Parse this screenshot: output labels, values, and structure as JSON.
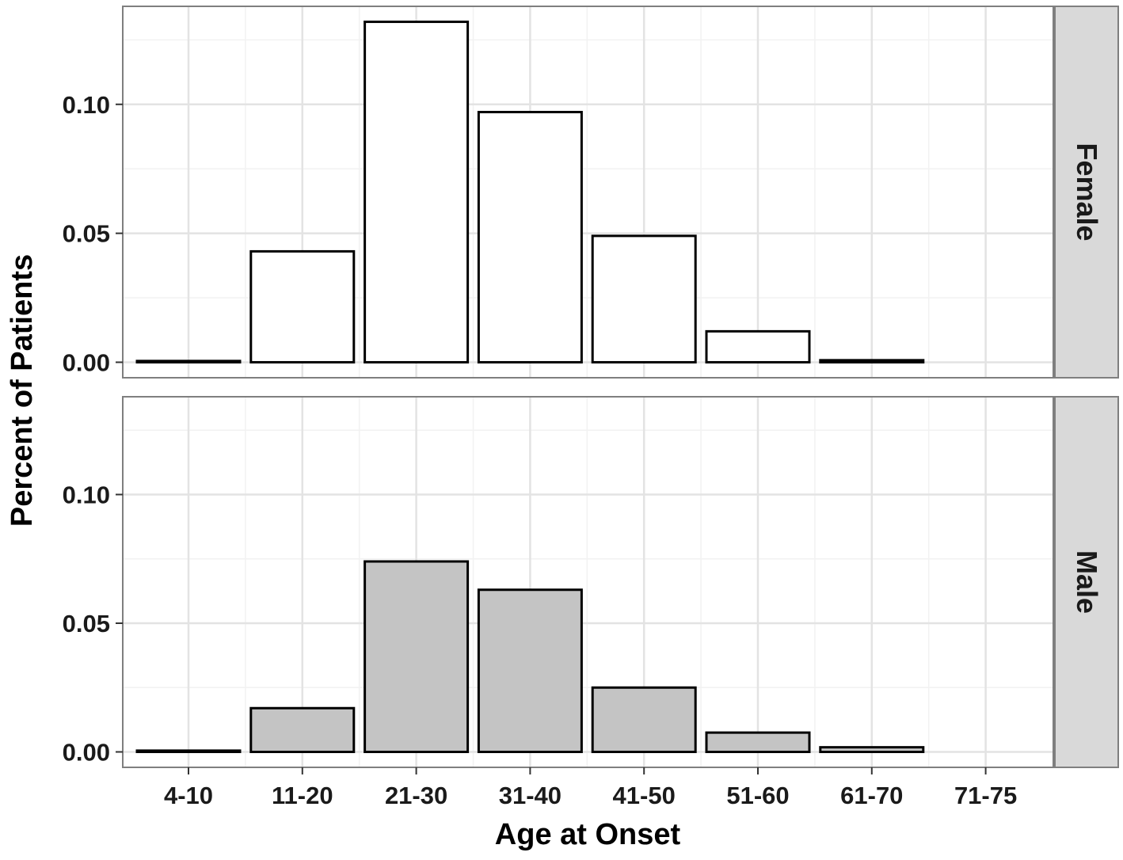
{
  "chart_data": {
    "type": "bar",
    "xlabel": "Age at Onset",
    "ylabel": "Percent of Patients",
    "categories": [
      "4-10",
      "11-20",
      "21-30",
      "31-40",
      "41-50",
      "51-60",
      "61-70",
      "71-75"
    ],
    "ylim": [
      -0.006,
      0.138
    ],
    "yticks": [
      0.0,
      0.05,
      0.1
    ],
    "ytick_labels": [
      "0.00",
      "0.05",
      "0.10"
    ],
    "grid": true,
    "facets": [
      {
        "name": "Female",
        "fill": "#ffffff",
        "values": [
          0.0005,
          0.043,
          0.132,
          0.097,
          0.049,
          0.012,
          0.0008,
          0.0
        ]
      },
      {
        "name": "Male",
        "fill": "#c4c4c4",
        "values": [
          0.0005,
          0.017,
          0.074,
          0.063,
          0.025,
          0.0075,
          0.0018,
          null
        ]
      }
    ]
  }
}
